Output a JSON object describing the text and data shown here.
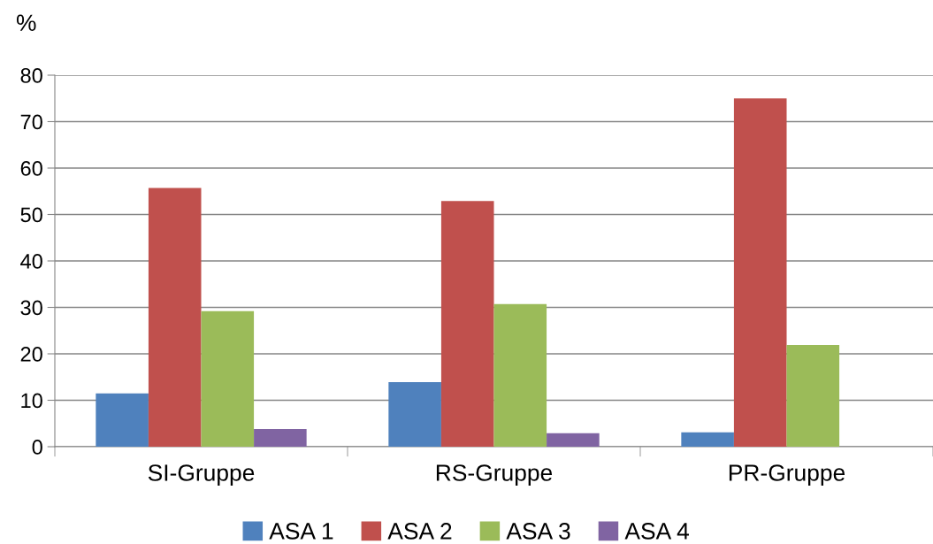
{
  "chart_data": {
    "type": "bar",
    "ylabel": "%",
    "categories": [
      "SI-Gruppe",
      "RS-Gruppe",
      "PR-Gruppe"
    ],
    "series": [
      {
        "name": "ASA 1",
        "color": "#4f81bd",
        "values": [
          11.5,
          13.9,
          3.1
        ]
      },
      {
        "name": "ASA 2",
        "color": "#c0504d",
        "values": [
          55.7,
          52.9,
          75.0
        ]
      },
      {
        "name": "ASA 3",
        "color": "#9bbb59",
        "values": [
          29.2,
          30.7,
          21.9
        ]
      },
      {
        "name": "ASA 4",
        "color": "#8064a2",
        "values": [
          3.8,
          2.9,
          0
        ]
      }
    ],
    "ylim": [
      0,
      80
    ],
    "yticks": [
      0,
      10,
      20,
      30,
      40,
      50,
      60,
      70,
      80
    ],
    "grid": "y",
    "legend": "bottom"
  }
}
